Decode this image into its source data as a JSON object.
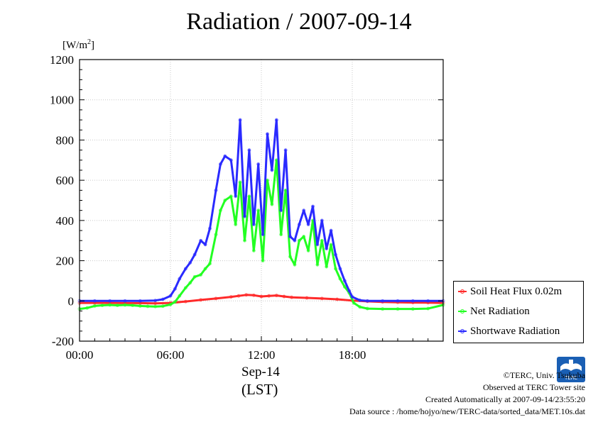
{
  "title": "Radiation / 2007-09-14",
  "date_label": "Sep-14",
  "timezone_label": "(LST)",
  "credits": {
    "copyright": "©TERC, Univ. Tsukuba",
    "observed": "Observed at TERC Tower site",
    "created": "Created Automatically at 2007-09-14/23:55:20",
    "source": "Data source : /home/hojyo/new/TERC-data/sorted_data/MET.10s.dat"
  },
  "logo_text": "TERC",
  "chart_data": {
    "type": "line",
    "ylabel": "[W/m2]",
    "ylim": [
      -200,
      1200
    ],
    "xlim": [
      0,
      24
    ],
    "yticks": [
      -200,
      0,
      200,
      400,
      600,
      800,
      1000,
      1200
    ],
    "xticks": [
      {
        "x": 0,
        "label": "00:00"
      },
      {
        "x": 6,
        "label": "06:00"
      },
      {
        "x": 12,
        "label": "12:00"
      },
      {
        "x": 18,
        "label": "18:00"
      }
    ],
    "grid": true,
    "legend_position": "bottom-right",
    "series": [
      {
        "name": "Soil Heat Flux 0.02m",
        "color": "#ff2a2a",
        "x": [
          0,
          1,
          2,
          3,
          4,
          5,
          6,
          7,
          8,
          9,
          10,
          10.5,
          11,
          11.5,
          12,
          12.5,
          13,
          13.5,
          14,
          15,
          16,
          17,
          18,
          19,
          20,
          21,
          22,
          23,
          24
        ],
        "y": [
          -10,
          -10,
          -10,
          -11,
          -11,
          -12,
          -10,
          -3,
          5,
          12,
          20,
          25,
          30,
          28,
          22,
          25,
          27,
          22,
          18,
          15,
          12,
          8,
          2,
          -2,
          -5,
          -7,
          -8,
          -9,
          -10
        ]
      },
      {
        "name": "Net Radiation",
        "color": "#22ff22",
        "x": [
          0,
          0.5,
          1,
          1.5,
          2,
          2.5,
          3,
          3.5,
          4,
          4.5,
          5,
          5.5,
          6,
          6.3,
          6.6,
          7,
          7.3,
          7.6,
          8,
          8.3,
          8.6,
          9,
          9.3,
          9.6,
          10,
          10.3,
          10.6,
          10.9,
          11.2,
          11.5,
          11.8,
          12.1,
          12.4,
          12.7,
          13,
          13.3,
          13.6,
          13.9,
          14.2,
          14.5,
          14.8,
          15.1,
          15.4,
          15.7,
          16,
          16.3,
          16.6,
          16.9,
          17.2,
          17.5,
          17.8,
          18.1,
          18.5,
          19,
          20,
          21,
          22,
          23,
          24
        ],
        "y": [
          -40,
          -35,
          -25,
          -22,
          -20,
          -22,
          -20,
          -22,
          -25,
          -27,
          -28,
          -26,
          -18,
          -5,
          25,
          65,
          90,
          120,
          130,
          160,
          185,
          330,
          450,
          500,
          520,
          380,
          590,
          300,
          520,
          250,
          450,
          200,
          600,
          480,
          700,
          330,
          550,
          220,
          180,
          300,
          320,
          250,
          400,
          180,
          300,
          170,
          280,
          160,
          110,
          70,
          40,
          -10,
          -30,
          -38,
          -40,
          -40,
          -40,
          -38,
          -20
        ]
      },
      {
        "name": "Shortwave Radiation",
        "color": "#2a2aff",
        "x": [
          0,
          1,
          2,
          3,
          4,
          5,
          5.5,
          6,
          6.3,
          6.6,
          7,
          7.3,
          7.6,
          8,
          8.3,
          8.6,
          9,
          9.3,
          9.6,
          10,
          10.3,
          10.6,
          10.9,
          11.2,
          11.5,
          11.8,
          12.1,
          12.4,
          12.7,
          13,
          13.3,
          13.6,
          13.9,
          14.2,
          14.5,
          14.8,
          15.1,
          15.4,
          15.7,
          16,
          16.3,
          16.6,
          16.9,
          17.2,
          17.5,
          17.8,
          18,
          18.5,
          19,
          20,
          21,
          22,
          23,
          24
        ],
        "y": [
          0,
          0,
          0,
          0,
          0,
          2,
          8,
          25,
          60,
          110,
          160,
          190,
          230,
          300,
          280,
          360,
          550,
          680,
          720,
          700,
          520,
          900,
          420,
          750,
          380,
          680,
          330,
          830,
          650,
          900,
          450,
          750,
          320,
          300,
          380,
          450,
          380,
          470,
          280,
          400,
          260,
          350,
          230,
          160,
          100,
          50,
          20,
          3,
          0,
          0,
          0,
          0,
          0,
          0
        ]
      }
    ]
  }
}
